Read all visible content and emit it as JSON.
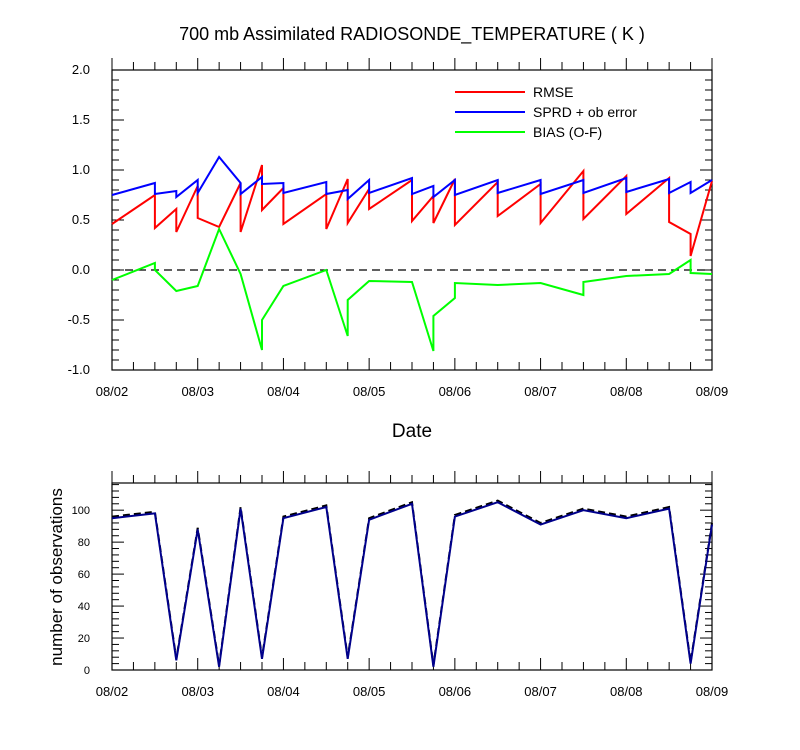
{
  "chart_data": [
    {
      "type": "line",
      "title": "700 mb Assimilated RADIOSONDE_TEMPERATURE ( K )",
      "xlabel": "Date",
      "ylabel": "",
      "xlim": [
        0,
        7
      ],
      "ylim": [
        -1.0,
        2.0
      ],
      "yticks": [
        "2.0",
        "1.5",
        "1.0",
        "0.5",
        "0.0",
        "-0.5",
        "-1.0"
      ],
      "ytick_values": [
        2.0,
        1.5,
        1.0,
        0.5,
        0.0,
        -0.5,
        -1.0
      ],
      "xtick_labels": [
        "08/02",
        "08/03",
        "08/04",
        "08/05",
        "08/06",
        "08/07",
        "08/08",
        "08/09"
      ],
      "xtick_values": [
        0,
        1,
        2,
        3,
        4,
        5,
        6,
        7
      ],
      "zero_line": true,
      "legend": [
        "RMSE",
        "SPRD + ob error",
        "BIAS (O-F)"
      ],
      "legend_position": "top-right",
      "series": [
        {
          "name": "RMSE",
          "color": "#ff0000",
          "x": [
            0,
            0.5,
            0.5,
            0.75,
            0.75,
            1.0,
            1.0,
            1.25,
            1.5,
            1.5,
            1.75,
            1.75,
            2.0,
            2.0,
            2.5,
            2.5,
            2.75,
            2.75,
            3.0,
            3.0,
            3.5,
            3.5,
            3.75,
            3.75,
            4.0,
            4.0,
            4.5,
            4.5,
            5.0,
            5.0,
            5.5,
            5.5,
            6.0,
            6.0,
            6.5,
            6.5,
            6.75,
            6.75,
            7.0
          ],
          "y": [
            0.46,
            0.75,
            0.42,
            0.61,
            0.38,
            0.84,
            0.52,
            0.43,
            0.87,
            0.38,
            1.05,
            0.6,
            0.82,
            0.46,
            0.76,
            0.41,
            0.91,
            0.47,
            0.81,
            0.61,
            0.9,
            0.49,
            0.74,
            0.47,
            0.91,
            0.45,
            0.88,
            0.54,
            0.86,
            0.47,
            0.99,
            0.51,
            0.94,
            0.56,
            0.92,
            0.48,
            0.36,
            0.14,
            0.89
          ]
        },
        {
          "name": "SPRD + ob error",
          "color": "#0000ff",
          "x": [
            0,
            0.5,
            0.5,
            0.75,
            0.75,
            1.0,
            1.0,
            1.25,
            1.5,
            1.5,
            1.75,
            1.75,
            2.0,
            2.0,
            2.5,
            2.5,
            2.75,
            2.75,
            3.0,
            3.0,
            3.5,
            3.5,
            3.75,
            3.75,
            4.0,
            4.0,
            4.5,
            4.5,
            5.0,
            5.0,
            5.5,
            5.5,
            6.0,
            6.0,
            6.5,
            6.5,
            6.75,
            6.75,
            7.0
          ],
          "y": [
            0.75,
            0.87,
            0.76,
            0.79,
            0.73,
            0.9,
            0.77,
            1.13,
            0.87,
            0.76,
            0.93,
            0.86,
            0.87,
            0.77,
            0.88,
            0.76,
            0.8,
            0.71,
            0.9,
            0.77,
            0.92,
            0.76,
            0.84,
            0.73,
            0.9,
            0.75,
            0.9,
            0.77,
            0.9,
            0.76,
            0.9,
            0.77,
            0.92,
            0.78,
            0.91,
            0.77,
            0.88,
            0.77,
            0.9
          ]
        },
        {
          "name": "BIAS (O-F)",
          "color": "#00ff00",
          "x": [
            0,
            0.5,
            0.5,
            0.75,
            1.0,
            1.25,
            1.5,
            1.75,
            1.75,
            2.0,
            2.5,
            2.75,
            2.75,
            3.0,
            3.5,
            3.75,
            3.75,
            4.0,
            4.0,
            4.5,
            5.0,
            5.5,
            5.5,
            6.0,
            6.5,
            6.75,
            6.75,
            7.0
          ],
          "y": [
            -0.1,
            0.07,
            0.0,
            -0.21,
            -0.16,
            0.41,
            -0.04,
            -0.8,
            -0.5,
            -0.16,
            0.0,
            -0.66,
            -0.3,
            -0.11,
            -0.12,
            -0.81,
            -0.46,
            -0.28,
            -0.13,
            -0.15,
            -0.13,
            -0.25,
            -0.12,
            -0.06,
            -0.04,
            0.1,
            -0.03,
            -0.04
          ]
        }
      ]
    },
    {
      "type": "line",
      "title": "",
      "xlabel": "",
      "ylabel": "number of observations",
      "xlim": [
        0,
        7
      ],
      "ylim": [
        0,
        117
      ],
      "yticks": [
        "100",
        "80",
        "60",
        "40",
        "20",
        "0"
      ],
      "ytick_values": [
        100,
        80,
        60,
        40,
        20,
        0
      ],
      "xtick_labels": [
        "08/02",
        "08/03",
        "08/04",
        "08/05",
        "08/06",
        "08/07",
        "08/08",
        "08/09"
      ],
      "xtick_values": [
        0,
        1,
        2,
        3,
        4,
        5,
        6,
        7
      ],
      "series": [
        {
          "name": "observations (dashed)",
          "color": "#000000",
          "dashed": true,
          "x": [
            0,
            0.5,
            0.75,
            1.0,
            1.25,
            1.5,
            1.75,
            2.0,
            2.5,
            2.75,
            3.0,
            3.5,
            3.75,
            4.0,
            4.5,
            5.0,
            5.5,
            6.0,
            6.5,
            6.75,
            7.0
          ],
          "y": [
            96,
            99,
            7,
            89,
            3,
            102,
            8,
            96,
            103,
            8,
            95,
            105,
            3,
            97,
            106,
            92,
            101,
            96,
            102,
            5,
            92
          ]
        },
        {
          "name": "observations (solid)",
          "color": "#00008b",
          "dashed": false,
          "x": [
            0,
            0.5,
            0.75,
            1.0,
            1.25,
            1.5,
            1.75,
            2.0,
            2.5,
            2.75,
            3.0,
            3.5,
            3.75,
            4.0,
            4.5,
            5.0,
            5.5,
            6.0,
            6.5,
            6.75,
            7.0
          ],
          "y": [
            95,
            98,
            6,
            88,
            2,
            101,
            7,
            95,
            102,
            7,
            94,
            104,
            2,
            96,
            105,
            91,
            100,
            95,
            101,
            4,
            91
          ]
        }
      ]
    }
  ]
}
